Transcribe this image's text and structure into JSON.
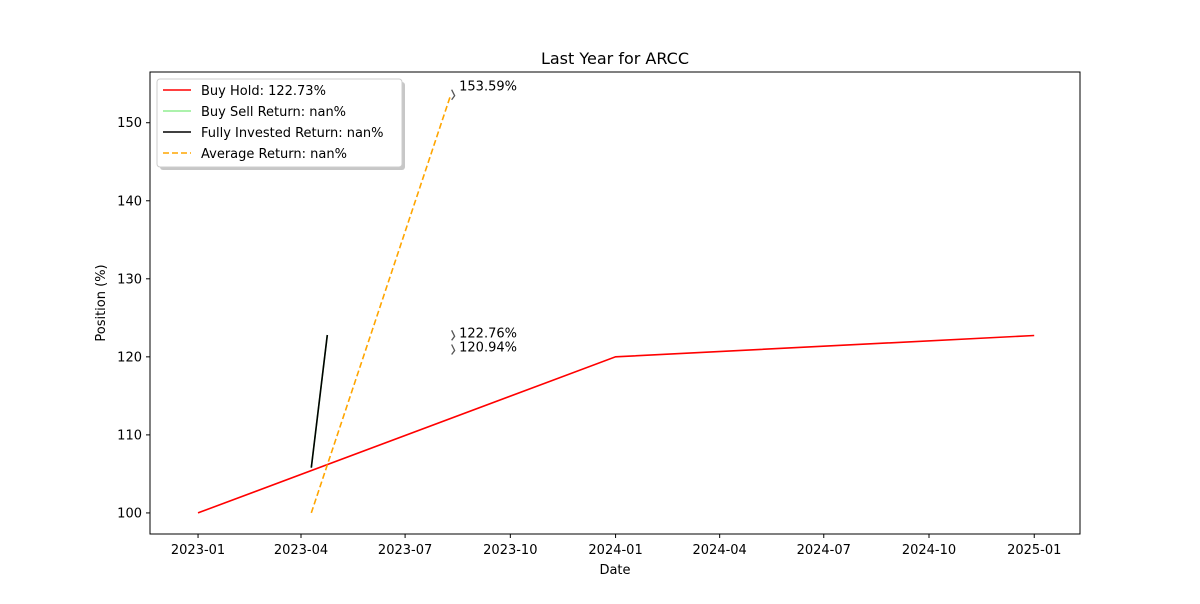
{
  "chart_data": {
    "type": "line",
    "title": "Last Year for ARCC",
    "xlabel": "Date",
    "ylabel": "Position (%)",
    "x_ticks": [
      "2023-01",
      "2023-04",
      "2023-07",
      "2023-10",
      "2024-01",
      "2024-04",
      "2024-07",
      "2024-10",
      "2025-01"
    ],
    "y_ticks": [
      100,
      110,
      120,
      130,
      140,
      150
    ],
    "xlim": [
      "2022-11-20",
      "2025-02-10"
    ],
    "ylim": [
      97.3,
      156.5
    ],
    "grid": false,
    "legend_position": "upper-left",
    "colors": {
      "buy_hold": "#ff0000",
      "buy_sell": "#90ee90",
      "fully_invested": "#000000",
      "average": "#ffa500",
      "annotation_arrow": "#555555"
    },
    "series": [
      {
        "name": "Buy Hold: 122.73%",
        "style": "solid",
        "color_key": "buy_hold",
        "points": [
          [
            "2023-01-01",
            100.0
          ],
          [
            "2024-01-01",
            120.0
          ],
          [
            "2025-01-01",
            122.73
          ]
        ]
      },
      {
        "name": "Buy Sell Return: nan%",
        "style": "solid",
        "color_key": "buy_sell",
        "points": [
          [
            "2023-04-10",
            105.8
          ],
          [
            "2023-04-24",
            122.8
          ]
        ]
      },
      {
        "name": "Fully Invested Return: nan%",
        "style": "solid",
        "color_key": "fully_invested",
        "points": [
          [
            "2023-04-10",
            105.8
          ],
          [
            "2023-04-24",
            122.8
          ]
        ]
      },
      {
        "name": "Average Return: nan%",
        "style": "dashed",
        "color_key": "average",
        "points": [
          [
            "2023-04-10",
            100.0
          ],
          [
            "2023-08-10",
            153.59
          ]
        ]
      }
    ],
    "annotations": [
      {
        "text": "153.59%",
        "date": "2023-08-12",
        "value": 153.59
      },
      {
        "text": "122.76%",
        "date": "2023-08-12",
        "value": 122.76
      },
      {
        "text": "120.94%",
        "date": "2023-08-12",
        "value": 120.94
      }
    ]
  }
}
